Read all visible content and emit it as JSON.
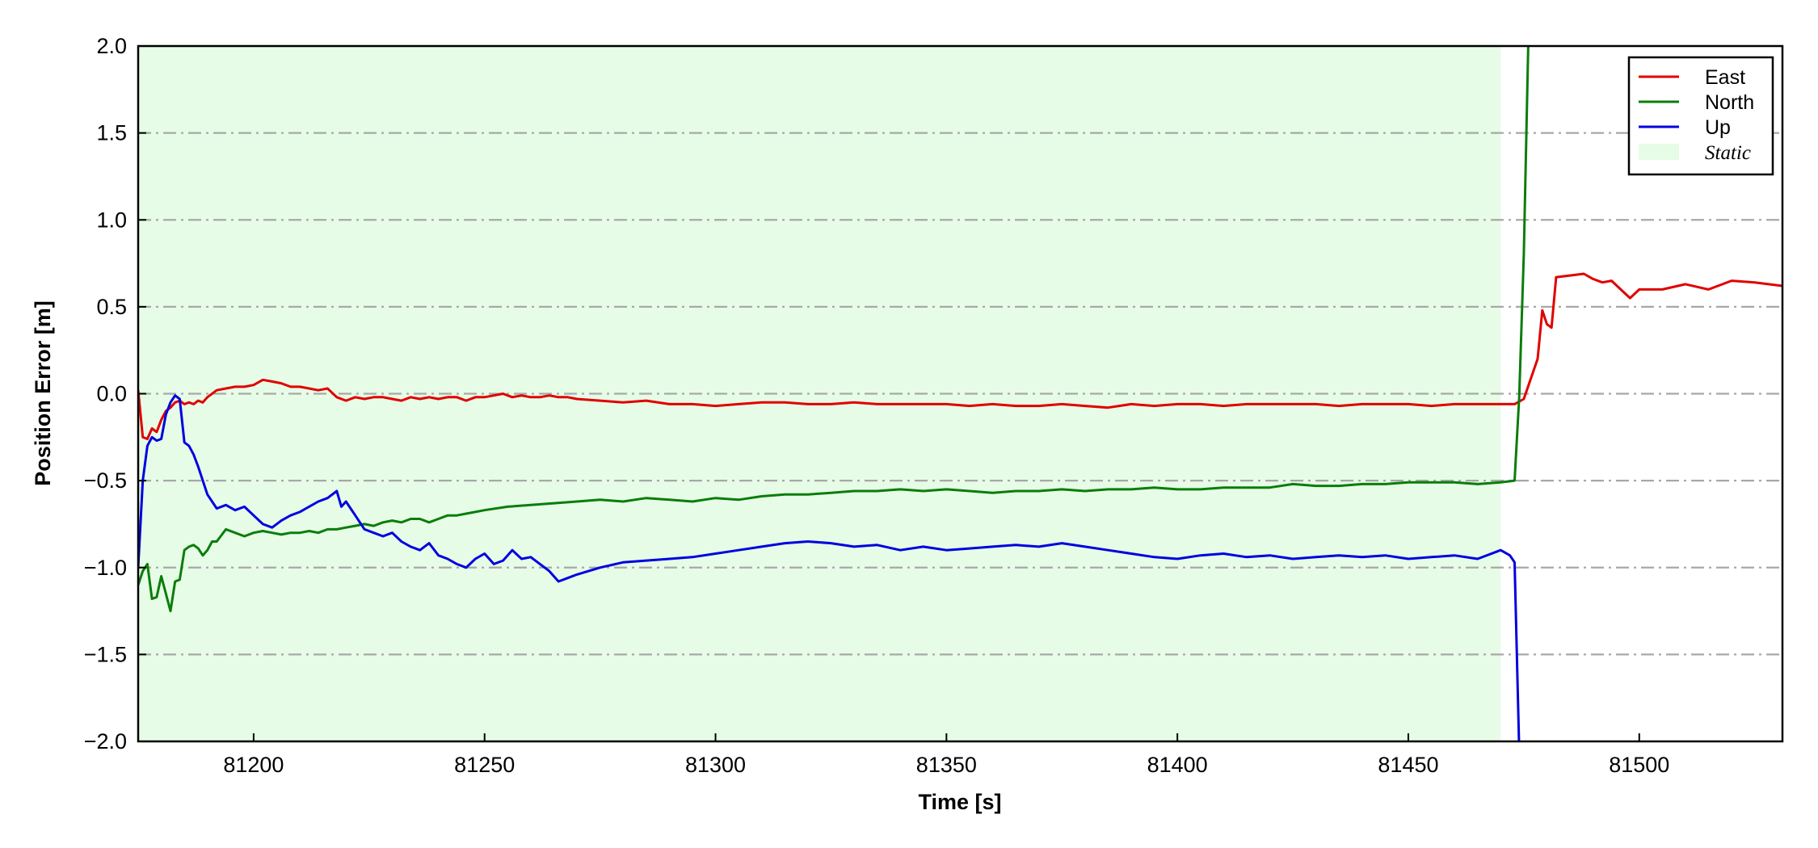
{
  "chart_data": {
    "type": "line",
    "xlabel": "Time [s]",
    "ylabel": "Position Error [m]",
    "xlim": [
      81175,
      81531
    ],
    "ylim": [
      -2.0,
      2.0
    ],
    "x_ticks": [
      81200,
      81250,
      81300,
      81350,
      81400,
      81450,
      81500
    ],
    "x_tick_labels": [
      "81200",
      "81250",
      "81300",
      "81350",
      "81400",
      "81450",
      "81500"
    ],
    "y_ticks": [
      2.0,
      1.5,
      1.0,
      0.5,
      0.0,
      -0.5,
      -1.0,
      -1.5,
      -2.0
    ],
    "y_tick_labels": [
      "2.0",
      "1.5",
      "1.0",
      "0.5",
      "0.0",
      "−0.5",
      "−1.0",
      "−1.5",
      "−2.0"
    ],
    "grid": "horizontal dash-dot",
    "legend_position": "top-right",
    "shaded_regions": [
      {
        "name": "Static",
        "x_start": 81175,
        "x_end": 81470,
        "color": "#e6fce6"
      }
    ],
    "series": [
      {
        "name": "East",
        "color": "#e00000",
        "x": [
          81175,
          81176,
          81177,
          81178,
          81179,
          81180,
          81181,
          81182,
          81183,
          81184,
          81185,
          81186,
          81187,
          81188,
          81189,
          81190,
          81192,
          81194,
          81196,
          81198,
          81200,
          81202,
          81204,
          81206,
          81208,
          81210,
          81212,
          81214,
          81216,
          81218,
          81220,
          81222,
          81224,
          81226,
          81228,
          81230,
          81232,
          81234,
          81236,
          81238,
          81240,
          81242,
          81244,
          81246,
          81248,
          81250,
          81252,
          81254,
          81256,
          81258,
          81260,
          81262,
          81264,
          81266,
          81268,
          81270,
          81275,
          81280,
          81285,
          81290,
          81295,
          81300,
          81305,
          81310,
          81315,
          81320,
          81325,
          81330,
          81335,
          81340,
          81345,
          81350,
          81355,
          81360,
          81365,
          81370,
          81375,
          81380,
          81385,
          81390,
          81395,
          81400,
          81405,
          81410,
          81415,
          81420,
          81425,
          81430,
          81435,
          81440,
          81445,
          81450,
          81455,
          81460,
          81465,
          81470,
          81473,
          81475,
          81478,
          81479,
          81480,
          81481,
          81482,
          81485,
          81488,
          81490,
          81492,
          81494,
          81496,
          81498,
          81500,
          81505,
          81510,
          81515,
          81520,
          81525,
          81531
        ],
        "y": [
          0.02,
          -0.25,
          -0.26,
          -0.2,
          -0.22,
          -0.15,
          -0.1,
          -0.08,
          -0.05,
          -0.04,
          -0.06,
          -0.05,
          -0.06,
          -0.04,
          -0.05,
          -0.02,
          0.02,
          0.03,
          0.04,
          0.04,
          0.05,
          0.08,
          0.07,
          0.06,
          0.04,
          0.04,
          0.03,
          0.02,
          0.03,
          -0.02,
          -0.04,
          -0.02,
          -0.03,
          -0.02,
          -0.02,
          -0.03,
          -0.04,
          -0.02,
          -0.03,
          -0.02,
          -0.03,
          -0.02,
          -0.02,
          -0.04,
          -0.02,
          -0.02,
          -0.01,
          0.0,
          -0.02,
          -0.01,
          -0.02,
          -0.02,
          -0.01,
          -0.02,
          -0.02,
          -0.03,
          -0.04,
          -0.05,
          -0.04,
          -0.06,
          -0.06,
          -0.07,
          -0.06,
          -0.05,
          -0.05,
          -0.06,
          -0.06,
          -0.05,
          -0.06,
          -0.06,
          -0.06,
          -0.06,
          -0.07,
          -0.06,
          -0.07,
          -0.07,
          -0.06,
          -0.07,
          -0.08,
          -0.06,
          -0.07,
          -0.06,
          -0.06,
          -0.07,
          -0.06,
          -0.06,
          -0.06,
          -0.06,
          -0.07,
          -0.06,
          -0.06,
          -0.06,
          -0.07,
          -0.06,
          -0.06,
          -0.06,
          -0.06,
          -0.03,
          0.2,
          0.48,
          0.4,
          0.38,
          0.67,
          0.68,
          0.69,
          0.66,
          0.64,
          0.65,
          0.6,
          0.55,
          0.6,
          0.6,
          0.63,
          0.6,
          0.65,
          0.64,
          0.62
        ]
      },
      {
        "name": "North",
        "color": "#0a7d0a",
        "x": [
          81175,
          81176,
          81177,
          81178,
          81179,
          81180,
          81181,
          81182,
          81183,
          81184,
          81185,
          81186,
          81187,
          81188,
          81189,
          81190,
          81191,
          81192,
          81194,
          81196,
          81198,
          81200,
          81202,
          81204,
          81206,
          81208,
          81210,
          81212,
          81214,
          81216,
          81218,
          81220,
          81222,
          81224,
          81226,
          81228,
          81230,
          81232,
          81234,
          81236,
          81238,
          81240,
          81242,
          81244,
          81246,
          81248,
          81250,
          81255,
          81260,
          81265,
          81270,
          81275,
          81280,
          81285,
          81290,
          81295,
          81300,
          81305,
          81310,
          81315,
          81320,
          81325,
          81330,
          81335,
          81340,
          81345,
          81350,
          81355,
          81360,
          81365,
          81370,
          81375,
          81380,
          81385,
          81390,
          81395,
          81400,
          81405,
          81410,
          81415,
          81420,
          81425,
          81430,
          81435,
          81440,
          81445,
          81450,
          81455,
          81460,
          81465,
          81470,
          81473,
          81474,
          81475,
          81476
        ],
        "y": [
          -1.1,
          -1.02,
          -0.98,
          -1.18,
          -1.17,
          -1.05,
          -1.15,
          -1.25,
          -1.08,
          -1.07,
          -0.9,
          -0.88,
          -0.87,
          -0.89,
          -0.93,
          -0.9,
          -0.85,
          -0.85,
          -0.78,
          -0.8,
          -0.82,
          -0.8,
          -0.79,
          -0.8,
          -0.81,
          -0.8,
          -0.8,
          -0.79,
          -0.8,
          -0.78,
          -0.78,
          -0.77,
          -0.76,
          -0.75,
          -0.76,
          -0.74,
          -0.73,
          -0.74,
          -0.72,
          -0.72,
          -0.74,
          -0.72,
          -0.7,
          -0.7,
          -0.69,
          -0.68,
          -0.67,
          -0.65,
          -0.64,
          -0.63,
          -0.62,
          -0.61,
          -0.62,
          -0.6,
          -0.61,
          -0.62,
          -0.6,
          -0.61,
          -0.59,
          -0.58,
          -0.58,
          -0.57,
          -0.56,
          -0.56,
          -0.55,
          -0.56,
          -0.55,
          -0.56,
          -0.57,
          -0.56,
          -0.56,
          -0.55,
          -0.56,
          -0.55,
          -0.55,
          -0.54,
          -0.55,
          -0.55,
          -0.54,
          -0.54,
          -0.54,
          -0.52,
          -0.53,
          -0.53,
          -0.52,
          -0.52,
          -0.51,
          -0.51,
          -0.51,
          -0.52,
          -0.51,
          -0.5,
          -0.02,
          0.8,
          2.05
        ]
      },
      {
        "name": "Up",
        "color": "#0000e0",
        "x": [
          81175,
          81176,
          81177,
          81178,
          81179,
          81180,
          81181,
          81182,
          81183,
          81184,
          81185,
          81186,
          81187,
          81188,
          81189,
          81190,
          81191,
          81192,
          81194,
          81196,
          81198,
          81200,
          81202,
          81204,
          81206,
          81208,
          81210,
          81212,
          81214,
          81216,
          81218,
          81219,
          81220,
          81222,
          81224,
          81226,
          81228,
          81230,
          81232,
          81234,
          81236,
          81238,
          81240,
          81242,
          81244,
          81246,
          81248,
          81250,
          81252,
          81254,
          81256,
          81258,
          81260,
          81262,
          81264,
          81266,
          81268,
          81270,
          81275,
          81280,
          81285,
          81290,
          81295,
          81300,
          81305,
          81310,
          81315,
          81320,
          81325,
          81330,
          81335,
          81340,
          81345,
          81350,
          81355,
          81360,
          81365,
          81370,
          81375,
          81380,
          81385,
          81390,
          81395,
          81400,
          81405,
          81410,
          81415,
          81420,
          81425,
          81430,
          81435,
          81440,
          81445,
          81450,
          81455,
          81460,
          81465,
          81470,
          81472,
          81473,
          81474
        ],
        "y": [
          -1.0,
          -0.5,
          -0.3,
          -0.25,
          -0.27,
          -0.26,
          -0.12,
          -0.05,
          -0.01,
          -0.03,
          -0.28,
          -0.3,
          -0.35,
          -0.42,
          -0.5,
          -0.58,
          -0.62,
          -0.66,
          -0.64,
          -0.67,
          -0.65,
          -0.7,
          -0.75,
          -0.77,
          -0.73,
          -0.7,
          -0.68,
          -0.65,
          -0.62,
          -0.6,
          -0.56,
          -0.65,
          -0.62,
          -0.7,
          -0.78,
          -0.8,
          -0.82,
          -0.8,
          -0.85,
          -0.88,
          -0.9,
          -0.86,
          -0.93,
          -0.95,
          -0.98,
          -1.0,
          -0.95,
          -0.92,
          -0.98,
          -0.96,
          -0.9,
          -0.95,
          -0.94,
          -0.98,
          -1.02,
          -1.08,
          -1.06,
          -1.04,
          -1.0,
          -0.97,
          -0.96,
          -0.95,
          -0.94,
          -0.92,
          -0.9,
          -0.88,
          -0.86,
          -0.85,
          -0.86,
          -0.88,
          -0.87,
          -0.9,
          -0.88,
          -0.9,
          -0.89,
          -0.88,
          -0.87,
          -0.88,
          -0.86,
          -0.88,
          -0.9,
          -0.92,
          -0.94,
          -0.95,
          -0.93,
          -0.92,
          -0.94,
          -0.93,
          -0.95,
          -0.94,
          -0.93,
          -0.94,
          -0.93,
          -0.95,
          -0.94,
          -0.93,
          -0.95,
          -0.9,
          -0.93,
          -0.97,
          -2.05
        ]
      }
    ]
  }
}
